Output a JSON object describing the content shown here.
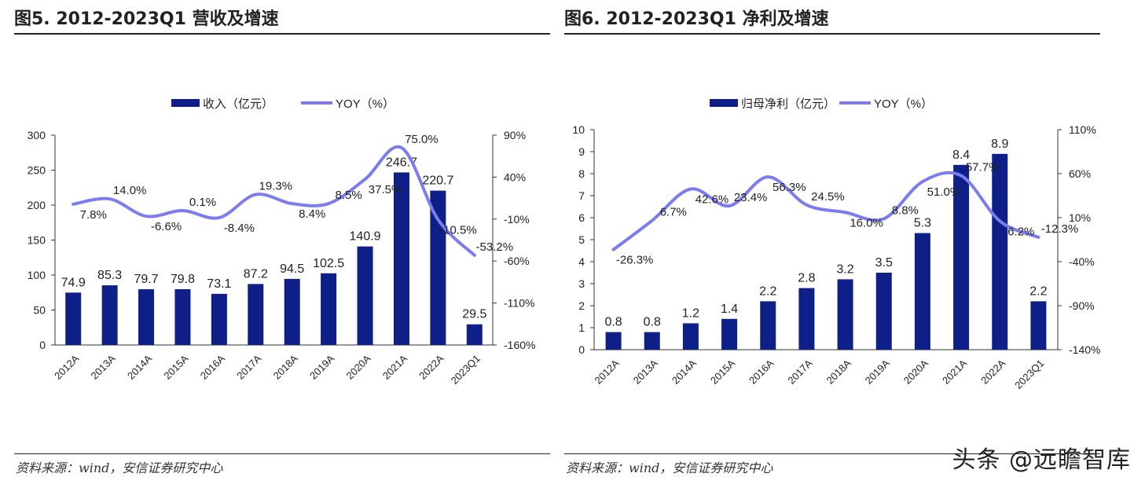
{
  "colors": {
    "bar": "#0e2088",
    "line": "#7b7cf0"
  },
  "watermark": "头条 @远瞻智库",
  "charts": [
    {
      "title": "图5. 2012-2023Q1 营收及增速",
      "source": "资料来源：wind，安信证券研究中心"
    },
    {
      "title": "图6. 2012-2023Q1 净利及增速",
      "source": "资料来源：wind，安信证券研究中心"
    }
  ],
  "chart_data": [
    {
      "type": "bar+line",
      "categories": [
        "2012A",
        "2013A",
        "2014A",
        "2015A",
        "2016A",
        "2017A",
        "2018A",
        "2019A",
        "2020A",
        "2021A",
        "2022A",
        "2023Q1"
      ],
      "series": [
        {
          "name": "收入（亿元）",
          "type": "bar",
          "axis": "left",
          "values": [
            74.9,
            85.3,
            79.7,
            79.8,
            73.1,
            87.2,
            94.5,
            102.5,
            140.9,
            246.7,
            220.7,
            29.5
          ]
        },
        {
          "name": "YOY（%）",
          "type": "line",
          "axis": "right",
          "values": [
            7.8,
            14.0,
            -6.6,
            0.1,
            -8.4,
            19.3,
            8.4,
            8.5,
            37.5,
            75.0,
            -10.5,
            -53.2
          ]
        }
      ],
      "yleft": {
        "lim": [
          0,
          300
        ],
        "ticks": [
          0,
          50,
          100,
          150,
          200,
          250,
          300
        ]
      },
      "yright": {
        "lim": [
          -160,
          90
        ],
        "ticks": [
          "-160%",
          "-110%",
          "-60%",
          "-10%",
          "40%",
          "90%"
        ]
      },
      "legend": "top"
    },
    {
      "type": "bar+line",
      "categories": [
        "2012A",
        "2013A",
        "2014A",
        "2015A",
        "2016A",
        "2017A",
        "2018A",
        "2019A",
        "2020A",
        "2021A",
        "2022A",
        "2023Q1"
      ],
      "series": [
        {
          "name": "归母净利（亿元）",
          "type": "bar",
          "axis": "left",
          "values": [
            0.8,
            0.8,
            1.2,
            1.4,
            2.2,
            2.8,
            3.2,
            3.5,
            5.3,
            8.4,
            8.9,
            2.2
          ]
        },
        {
          "name": "YOY（%）",
          "type": "line",
          "axis": "right",
          "values": [
            -26.3,
            6.7,
            42.6,
            23.4,
            56.3,
            24.5,
            16.0,
            8.8,
            51.0,
            57.7,
            6.2,
            -12.3
          ]
        }
      ],
      "yleft": {
        "lim": [
          0,
          10
        ],
        "ticks": [
          0,
          1,
          2,
          3,
          4,
          5,
          6,
          7,
          8,
          9,
          10
        ]
      },
      "yright": {
        "lim": [
          -140,
          110
        ],
        "ticks": [
          "-140%",
          "-90%",
          "-40%",
          "10%",
          "60%",
          "110%"
        ]
      },
      "legend": "top"
    }
  ]
}
